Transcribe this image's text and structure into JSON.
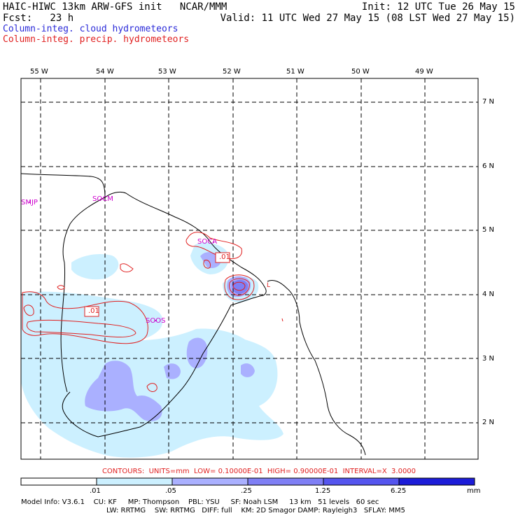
{
  "header": {
    "line1_left": "HAIC-HIWC 13km ARW-GFS init   NCAR/MMM",
    "line1_right": "Init: 12 UTC Tue 26 May 15",
    "line2_left": "Fcst:   23 h",
    "line2_right": "Valid: 11 UTC Wed 27 May 15 (08 LST Wed 27 May 15)",
    "field1": "Column-integ. cloud hydrometeors",
    "field2": "Column-integ. precip. hydrometeors"
  },
  "lon_labels": [
    "55 W",
    "54 W",
    "53 W",
    "52 W",
    "51 W",
    "50 W",
    "49 W"
  ],
  "lat_labels": [
    "7 N",
    "6 N",
    "5 N",
    "4 N",
    "3 N",
    "2 N"
  ],
  "stations": [
    "SMJP",
    "SOCM",
    "SOCA",
    "SOOS"
  ],
  "contour_labels": [
    ".01",
    ".01",
    "L"
  ],
  "contour_info": "CONTOURS:  UNITS=mm  LOW= 0.10000E-01  HIGH= 0.90000E-01  INTERVAL=X  3.0000",
  "colorbar": {
    "labels": [
      ".01",
      ".05",
      ".25",
      "1.25",
      "6.25"
    ],
    "unit": "mm",
    "colors": [
      "#ffffff",
      "#ccf0ff",
      "#aab0ff",
      "#7f7ff5",
      "#5555ee",
      "#1c1cd8"
    ]
  },
  "footer": {
    "line1": "Model Info: V3.6.1    CU: KF     MP: Thompson    PBL: YSU     SF: Noah LSM     13 km   51 levels   60 sec",
    "line2": "LW: RRTMG    SW: RRTMG   DIFF: full    KM: 2D Smagor DAMP: Rayleigh3   SFLAY: MM5"
  },
  "colors": {
    "cloud_light": "#ccf0ff",
    "cloud_mid": "#aab0ff",
    "cloud_dark": "#7f7ff5",
    "precip_contour": "#e02020",
    "station_label": "#cc00cc"
  }
}
